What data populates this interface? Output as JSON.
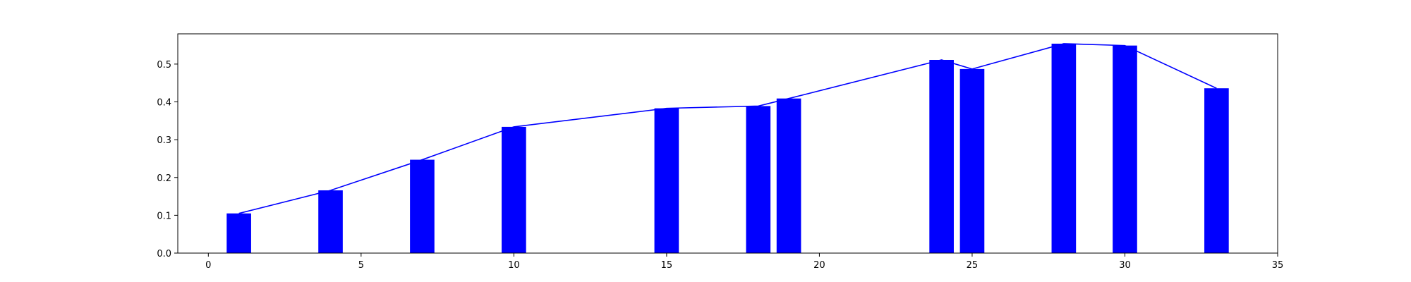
{
  "chart_data": {
    "type": "bar",
    "title": "",
    "xlabel": "",
    "ylabel": "",
    "xlim": [
      -1,
      35
    ],
    "ylim": [
      0,
      0.58
    ],
    "xticks": [
      0,
      5,
      10,
      15,
      20,
      25,
      30,
      35
    ],
    "yticks": [
      0.0,
      0.1,
      0.2,
      0.3,
      0.4,
      0.5
    ],
    "xtick_labels": [
      "0",
      "5",
      "10",
      "15",
      "20",
      "25",
      "30",
      "35"
    ],
    "ytick_labels": [
      "0.0",
      "0.1",
      "0.2",
      "0.3",
      "0.4",
      "0.5"
    ],
    "grid": false,
    "bar_width": 0.8,
    "bar_color": "#0000ff",
    "line_color": "#0000ff",
    "x": [
      1,
      4,
      7,
      10,
      15,
      18,
      19,
      24,
      25,
      28,
      30,
      33
    ],
    "values": [
      0.105,
      0.166,
      0.247,
      0.334,
      0.383,
      0.389,
      0.409,
      0.511,
      0.487,
      0.554,
      0.549,
      0.436
    ]
  }
}
